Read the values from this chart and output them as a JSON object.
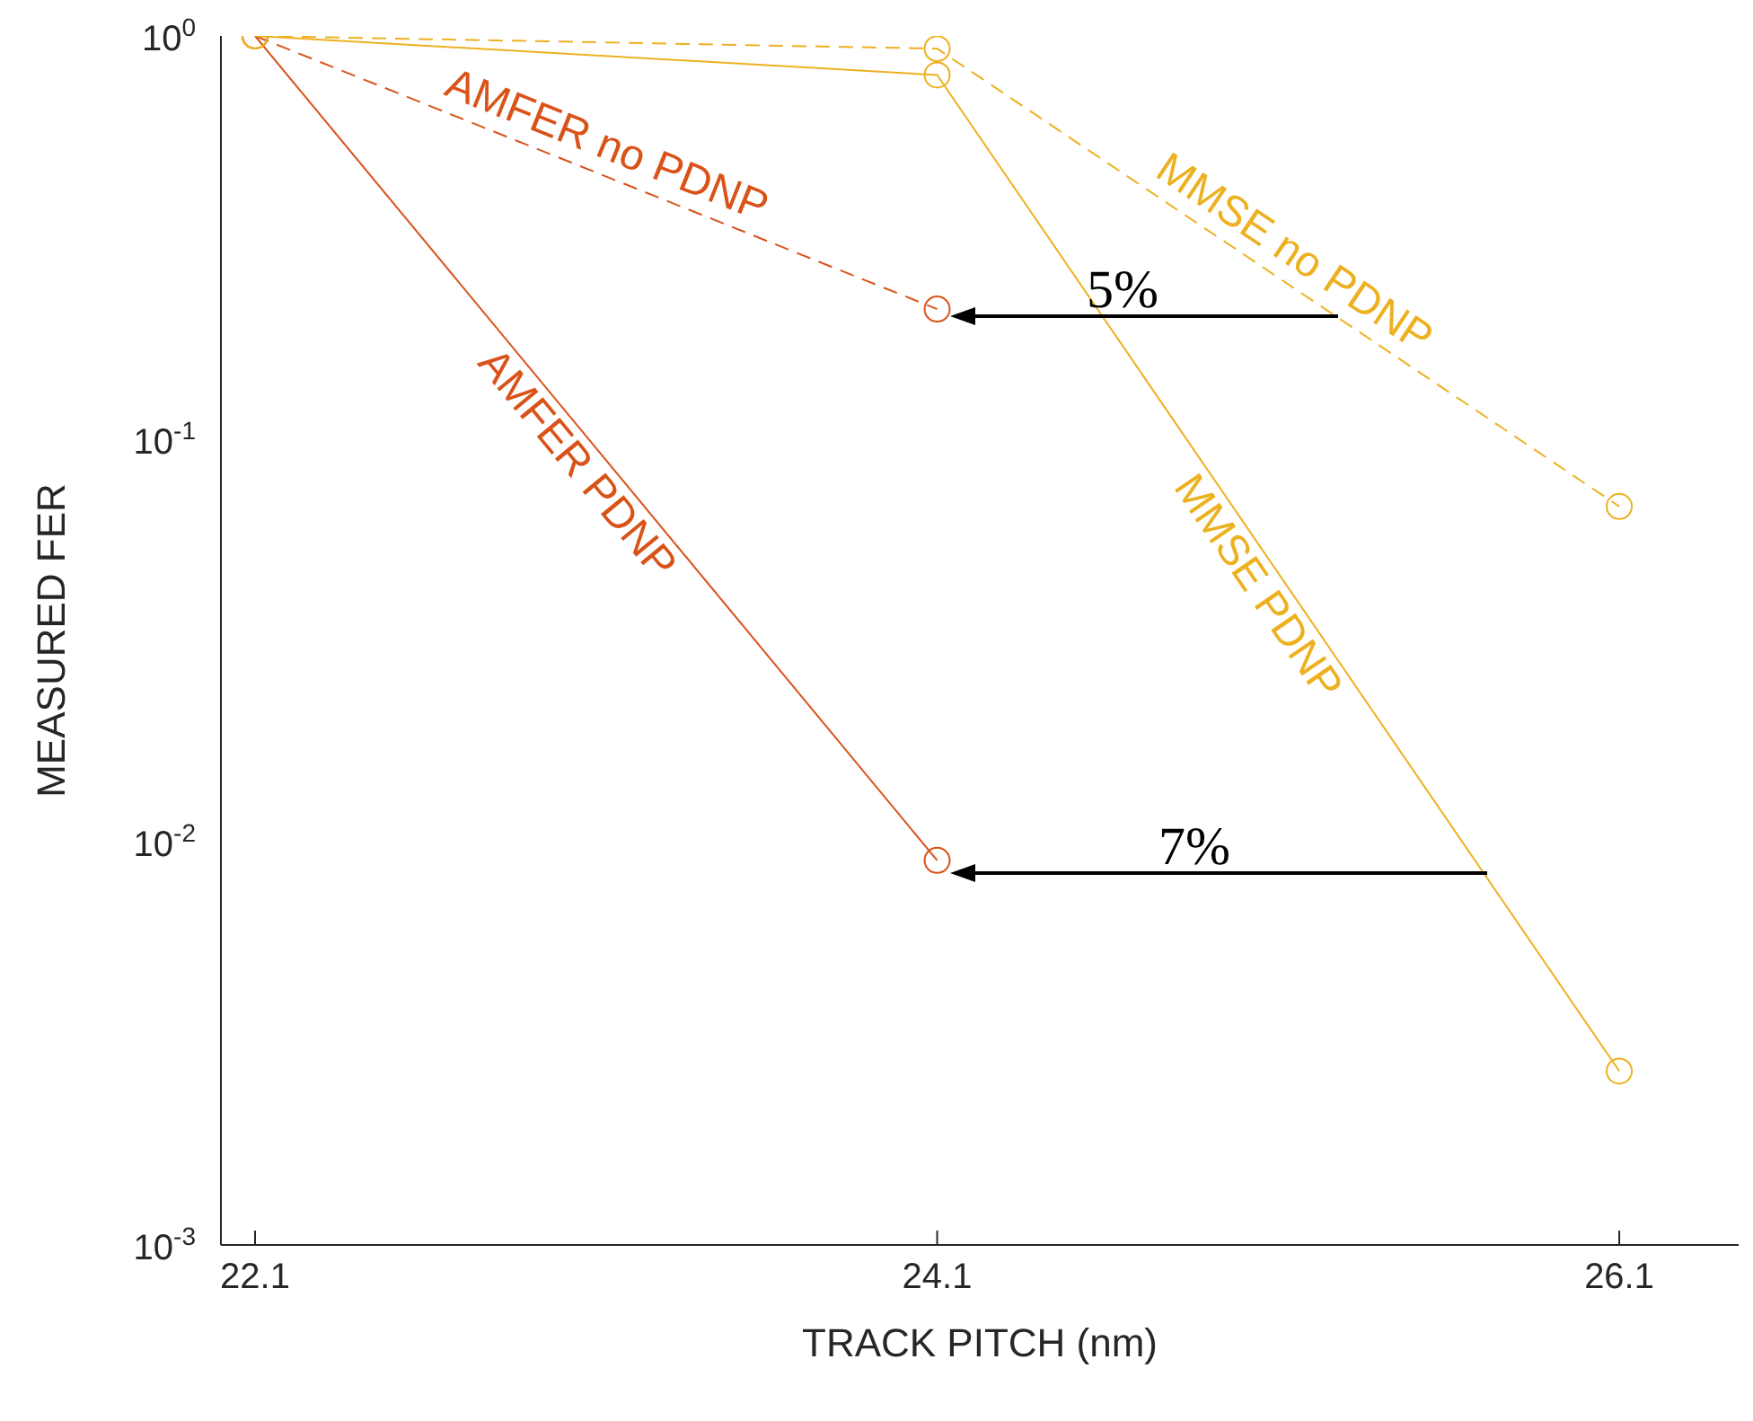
{
  "chart_data": {
    "type": "line",
    "xlabel": "TRACK PITCH (nm)",
    "ylabel": "MEASURED FER",
    "log": "y",
    "marker": "circle",
    "grid": false,
    "legend": false,
    "xlim": [
      22,
      26.45
    ],
    "xticks": [
      22.1,
      24.1,
      26.1
    ],
    "ylim": [
      0.001,
      1
    ],
    "yticks": [
      {
        "value": 0.001,
        "label": "10$^{-3}$"
      },
      {
        "value": 0.01,
        "label": "10$^{-2}$"
      },
      {
        "value": 0.1,
        "label": "10$^{-1}$"
      },
      {
        "value": 1,
        "label": "10$^{0}$"
      }
    ],
    "series": [
      {
        "name": "AMFER PDNP",
        "color": "#d95319",
        "line_style": "solid",
        "x": [
          22.1,
          24.1
        ],
        "values": [
          1,
          0.009
        ]
      },
      {
        "name": "AMFER no PDNP",
        "color": "#d95319",
        "line_style": "dashed",
        "x": [
          22.1,
          24.1
        ],
        "values": [
          1,
          0.21
        ]
      },
      {
        "name": "MMSE PDNP",
        "color": "#edb120",
        "line_style": "solid",
        "x": [
          22.1,
          24.1,
          26.1
        ],
        "values": [
          1,
          0.8,
          0.0027
        ]
      },
      {
        "name": "MMSE no PDNP",
        "color": "#edb120",
        "line_style": "dashed",
        "x": [
          22.1,
          24.1,
          26.1
        ],
        "values": [
          1,
          0.93,
          0.068
        ]
      }
    ],
    "annotations": [
      "5%",
      "7%"
    ]
  }
}
